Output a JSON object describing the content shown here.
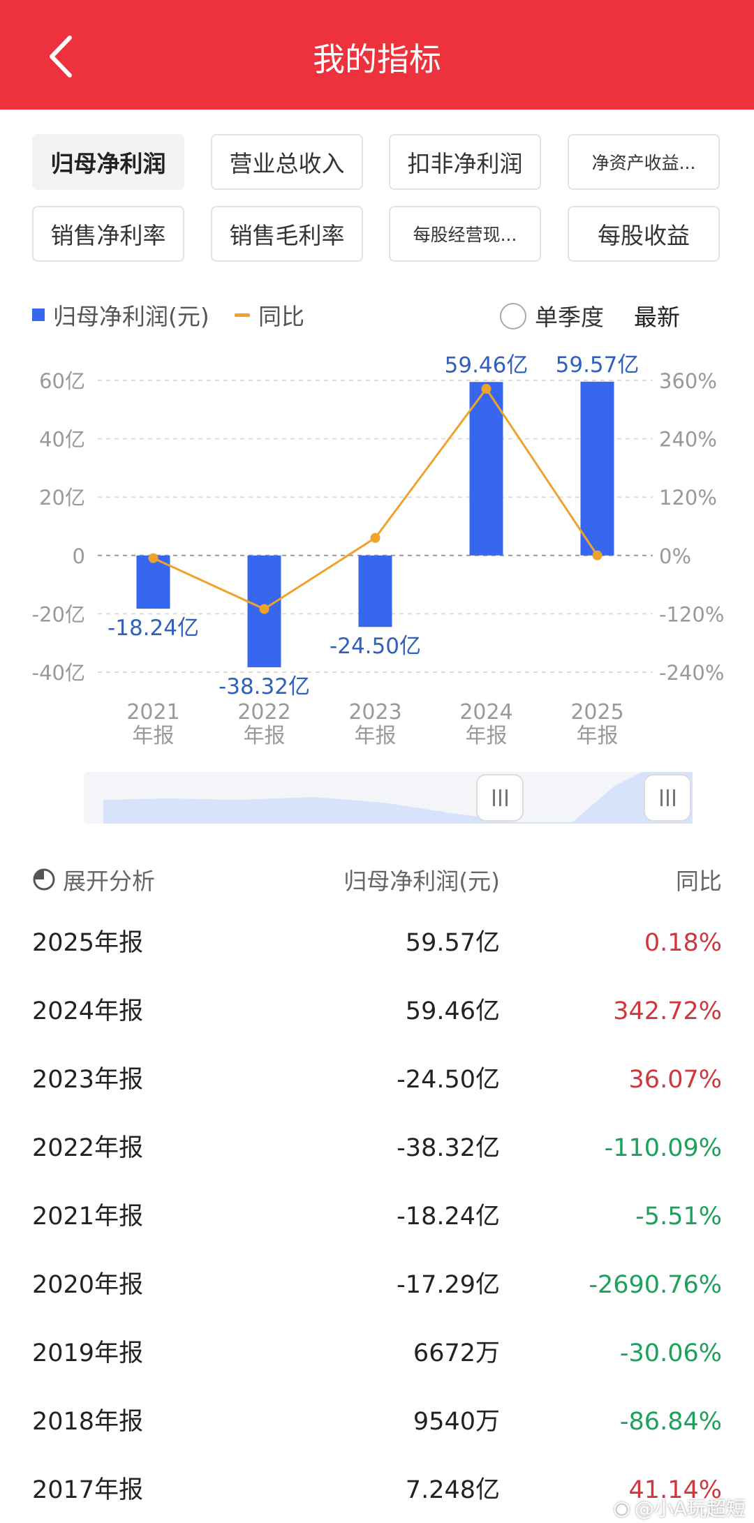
{
  "header": {
    "title": "我的指标",
    "back_icon": "chevron-left-icon"
  },
  "tabs": [
    {
      "label": "归母净利润",
      "active": true
    },
    {
      "label": "营业总收入",
      "active": false
    },
    {
      "label": "扣非净利润",
      "active": false
    },
    {
      "label": "净资产收益...",
      "active": false
    },
    {
      "label": "销售净利率",
      "active": false
    },
    {
      "label": "销售毛利率",
      "active": false
    },
    {
      "label": "每股经营现...",
      "active": false
    },
    {
      "label": "每股收益",
      "active": false
    }
  ],
  "legend": {
    "bar_label": "归母净利润(元)",
    "line_label": "同比",
    "option_single_quarter": "单季度",
    "option_latest": "最新"
  },
  "colors": {
    "header": "#ee323d",
    "bar": "#3767ef",
    "line": "#f0a22b",
    "label": "#2f5fbf",
    "positive": "#d1363c",
    "negative": "#1aa25a"
  },
  "chart_data": {
    "type": "bar",
    "categories": [
      "2021\n年报",
      "2022\n年报",
      "2023\n年报",
      "2024\n年报",
      "2025\n年报"
    ],
    "category_years": [
      "2021",
      "2022",
      "2023",
      "2024",
      "2025"
    ],
    "category_suffix": "年报",
    "series": [
      {
        "name": "归母净利润(元)",
        "type": "bar",
        "values": [
          -18.24,
          -38.32,
          -24.5,
          59.46,
          59.57
        ],
        "labels": [
          "-18.24亿",
          "-38.32亿",
          "-24.50亿",
          "59.46亿",
          "59.57亿"
        ]
      },
      {
        "name": "同比",
        "type": "line",
        "values": [
          -5.51,
          -110.09,
          36.07,
          342.72,
          0.18
        ]
      }
    ],
    "y_left": {
      "ticks": [
        "60亿",
        "40亿",
        "20亿",
        "0",
        "-20亿",
        "-40亿"
      ],
      "tick_values": [
        60,
        40,
        20,
        0,
        -20,
        -40
      ],
      "ylim": [
        -40,
        60
      ]
    },
    "y_right": {
      "ticks": [
        "360%",
        "240%",
        "120%",
        "0%",
        "-120%",
        "-240%"
      ],
      "tick_values": [
        360,
        240,
        120,
        0,
        -120,
        -240
      ],
      "ylim": [
        -240,
        360
      ]
    },
    "grid": true
  },
  "table": {
    "expand_icon": "pie-chart-icon",
    "headers": {
      "expand": "展开分析",
      "value": "归母净利润(元)",
      "yoy": "同比"
    },
    "rows": [
      {
        "period": "2025年报",
        "value": "59.57亿",
        "yoy": "0.18%",
        "trend": "up"
      },
      {
        "period": "2024年报",
        "value": "59.46亿",
        "yoy": "342.72%",
        "trend": "up"
      },
      {
        "period": "2023年报",
        "value": "-24.50亿",
        "yoy": "36.07%",
        "trend": "up"
      },
      {
        "period": "2022年报",
        "value": "-38.32亿",
        "yoy": "-110.09%",
        "trend": "down"
      },
      {
        "period": "2021年报",
        "value": "-18.24亿",
        "yoy": "-5.51%",
        "trend": "down"
      },
      {
        "period": "2020年报",
        "value": "-17.29亿",
        "yoy": "-2690.76%",
        "trend": "down"
      },
      {
        "period": "2019年报",
        "value": "6672万",
        "yoy": "-30.06%",
        "trend": "down"
      },
      {
        "period": "2018年报",
        "value": "9540万",
        "yoy": "-86.84%",
        "trend": "down"
      },
      {
        "period": "2017年报",
        "value": "7.248亿",
        "yoy": "41.14%",
        "trend": "up"
      }
    ]
  },
  "watermark": {
    "text": "@小A玩超短",
    "icon": "weibo-icon"
  }
}
